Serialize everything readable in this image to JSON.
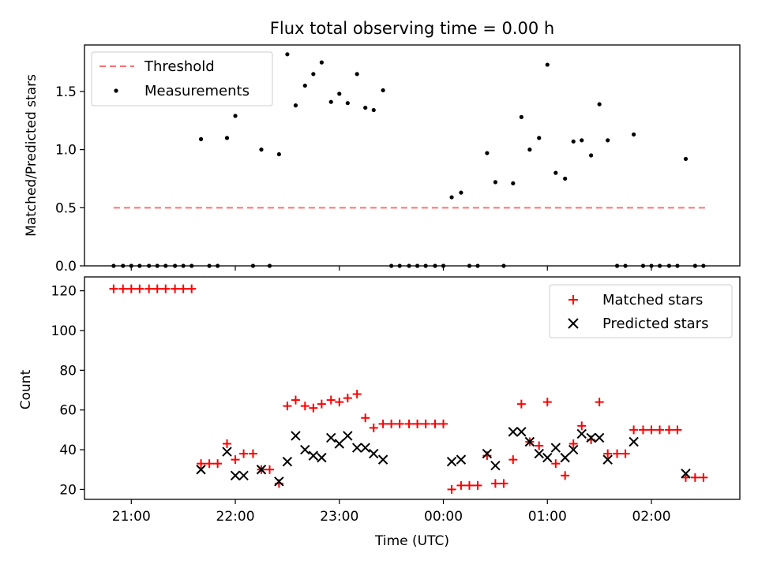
{
  "chart_data": [
    {
      "type": "scatter",
      "title": "Flux total observing time = 0.00 h",
      "ylabel": "Matched/Predicted stars",
      "xlabel": "",
      "xlim_hours": [
        20.55,
        26.85
      ],
      "ylim": [
        0,
        1.9
      ],
      "yticks": [
        0.0,
        0.5,
        1.0,
        1.5
      ],
      "ytick_labels": [
        "0.0",
        "0.5",
        "1.0",
        "1.5"
      ],
      "grid": false,
      "legend_position": "top-left",
      "colors": {
        "threshold": "#ff7070",
        "measurements": "#000000"
      },
      "series": [
        {
          "name": "Threshold",
          "style": "dashed-line",
          "x": [
            20.83,
            26.55
          ],
          "y": [
            0.5,
            0.5
          ]
        },
        {
          "name": "Measurements",
          "style": "points",
          "x": [
            20.83,
            20.92,
            21.0,
            21.08,
            21.17,
            21.25,
            21.33,
            21.42,
            21.5,
            21.58,
            21.67,
            21.75,
            21.83,
            21.92,
            22.0,
            22.08,
            22.17,
            22.25,
            22.33,
            22.42,
            22.5,
            22.58,
            22.67,
            22.75,
            22.83,
            22.92,
            23.0,
            23.08,
            23.17,
            23.25,
            23.33,
            23.42,
            23.5,
            23.58,
            23.67,
            23.75,
            23.83,
            23.92,
            24.0,
            24.08,
            24.17,
            24.25,
            24.33,
            24.42,
            24.5,
            24.58,
            24.67,
            24.75,
            24.83,
            24.92,
            25.0,
            25.08,
            25.17,
            25.25,
            25.33,
            25.42,
            25.5,
            25.58,
            25.67,
            25.75,
            25.83,
            25.92,
            26.0,
            26.08,
            26.17,
            26.25,
            26.33,
            26.42,
            26.5
          ],
          "y": [
            0,
            0,
            0,
            0,
            0,
            0,
            0,
            0,
            0,
            0,
            1.09,
            0,
            0,
            1.1,
            1.29,
            1.4,
            0,
            1.0,
            0,
            0.96,
            1.82,
            1.38,
            1.55,
            1.65,
            1.75,
            1.41,
            1.48,
            1.4,
            1.65,
            1.36,
            1.34,
            1.51,
            0,
            0,
            0,
            0,
            0,
            0,
            0,
            0.59,
            0.63,
            0,
            0,
            0.97,
            0.72,
            0,
            0.71,
            1.28,
            1.0,
            1.1,
            1.73,
            0.8,
            0.75,
            1.07,
            1.08,
            0.95,
            1.39,
            1.08,
            0,
            0,
            1.13,
            0,
            0,
            0,
            0,
            0,
            0.92,
            0,
            0
          ]
        }
      ]
    },
    {
      "type": "scatter",
      "title": "",
      "ylabel": "Count",
      "xlabel": "Time (UTC)",
      "xlim_hours": [
        20.55,
        26.85
      ],
      "xticks_hours": [
        21,
        22,
        23,
        24,
        25,
        26
      ],
      "xtick_labels": [
        "21:00",
        "22:00",
        "23:00",
        "00:00",
        "01:00",
        "02:00"
      ],
      "ylim": [
        15,
        127
      ],
      "yticks": [
        20,
        40,
        60,
        80,
        100,
        120
      ],
      "ytick_labels": [
        "20",
        "40",
        "60",
        "80",
        "100",
        "120"
      ],
      "grid": false,
      "legend_position": "top-right",
      "colors": {
        "matched": "#ff0000",
        "predicted": "#000000"
      },
      "series": [
        {
          "name": "Matched stars",
          "marker": "plus",
          "x": [
            20.83,
            20.92,
            21.0,
            21.08,
            21.17,
            21.25,
            21.33,
            21.42,
            21.5,
            21.58,
            21.67,
            21.75,
            21.83,
            21.92,
            22.0,
            22.08,
            22.17,
            22.25,
            22.33,
            22.42,
            22.5,
            22.58,
            22.67,
            22.75,
            22.83,
            22.92,
            23.0,
            23.08,
            23.17,
            23.25,
            23.33,
            23.42,
            23.5,
            23.58,
            23.67,
            23.75,
            23.83,
            23.92,
            24.0,
            24.08,
            24.17,
            24.25,
            24.33,
            24.42,
            24.5,
            24.58,
            24.67,
            24.75,
            24.83,
            24.92,
            25.0,
            25.08,
            25.17,
            25.25,
            25.33,
            25.42,
            25.5,
            25.58,
            25.67,
            25.75,
            25.83,
            25.92,
            26.0,
            26.08,
            26.17,
            26.25,
            26.33,
            26.42,
            26.5
          ],
          "y": [
            121,
            121,
            121,
            121,
            121,
            121,
            121,
            121,
            121,
            121,
            33,
            33,
            33,
            43,
            35,
            38,
            38,
            30,
            30,
            23,
            62,
            65,
            62,
            61,
            63,
            65,
            64,
            66,
            68,
            56,
            51,
            53,
            53,
            53,
            53,
            53,
            53,
            53,
            53,
            20,
            22,
            22,
            22,
            37,
            23,
            23,
            35,
            63,
            44,
            42,
            64,
            33,
            27,
            43,
            52,
            45,
            64,
            38,
            38,
            38,
            50,
            50,
            50,
            50,
            50,
            50,
            26,
            26,
            26
          ]
        },
        {
          "name": "Predicted stars",
          "marker": "x",
          "x": [
            21.67,
            21.92,
            22.0,
            22.08,
            22.25,
            22.42,
            22.5,
            22.58,
            22.67,
            22.75,
            22.83,
            22.92,
            23.0,
            23.08,
            23.17,
            23.25,
            23.33,
            23.42,
            24.08,
            24.17,
            24.42,
            24.5,
            24.67,
            24.75,
            24.83,
            24.92,
            25.0,
            25.08,
            25.17,
            25.25,
            25.33,
            25.42,
            25.5,
            25.58,
            25.83,
            26.33
          ],
          "y": [
            30,
            39,
            27,
            27,
            30,
            24,
            34,
            47,
            40,
            37,
            36,
            46,
            43,
            47,
            41,
            41,
            38,
            35,
            34,
            35,
            38,
            32,
            49,
            49,
            44,
            38,
            36,
            41,
            36,
            40,
            48,
            46,
            46,
            35,
            44,
            28
          ]
        }
      ]
    }
  ]
}
